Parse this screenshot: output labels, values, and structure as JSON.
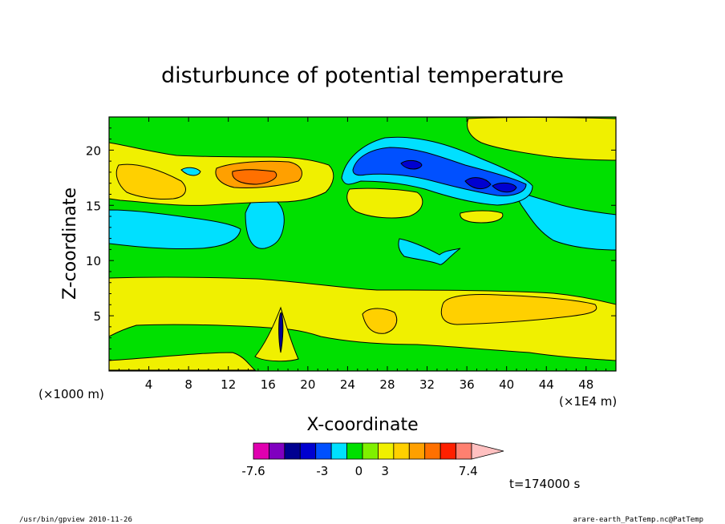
{
  "chart_data": {
    "type": "heatmap",
    "title": "disturbunce of potential temperature",
    "xlabel": "X-coordinate",
    "ylabel": "Z-coordinate",
    "xunit_left": "(×1000 m)",
    "xunit_right": "(×1E4 m)",
    "xlim": [
      0,
      51
    ],
    "ylim": [
      0,
      23
    ],
    "xticks": [
      "4",
      "8",
      "12",
      "16",
      "20",
      "24",
      "28",
      "32",
      "36",
      "40",
      "44",
      "48"
    ],
    "yticks": [
      "5",
      "10",
      "15",
      "20"
    ],
    "colorbar": {
      "colors": [
        "#e000b0",
        "#8000c0",
        "#000090",
        "#0000d0",
        "#0050ff",
        "#00e0ff",
        "#00e000",
        "#80f000",
        "#f0f000",
        "#ffd000",
        "#ffa000",
        "#ff7000",
        "#ff2000",
        "#ff8070",
        "#ffc0c0"
      ],
      "labels": [
        "-7.6",
        "-3",
        "0",
        "3",
        "7.4"
      ]
    },
    "time_label": "t=174000 s",
    "regions": [
      {
        "level": "yellow",
        "name": "lower yellow band",
        "x": [
          0,
          51
        ],
        "z": [
          2,
          8.5
        ]
      },
      {
        "level": "orange",
        "name": "lower right orange cell",
        "x": [
          33,
          49
        ],
        "z": [
          4,
          7
        ]
      },
      {
        "level": "cyan",
        "name": "mid cyan band",
        "x": [
          0,
          51
        ],
        "z": [
          11,
          15.5
        ]
      },
      {
        "level": "yellow",
        "name": "upper yellow band",
        "x": [
          0,
          51
        ],
        "z": [
          15,
          21
        ]
      },
      {
        "level": "dark-orange",
        "name": "upper orange cell",
        "x": [
          11,
          19
        ],
        "z": [
          16.5,
          19
        ]
      },
      {
        "level": "blue",
        "name": "upper blue cell",
        "x": [
          24,
          43
        ],
        "z": [
          16,
          20
        ]
      },
      {
        "level": "dark-blue",
        "name": "upper dark blue cores",
        "x": [
          29,
          40
        ],
        "z": [
          16.5,
          19
        ]
      }
    ]
  },
  "footer": {
    "left": "/usr/bin/gpview   2010-11-26",
    "right": "arare-earth_PatTemp.nc@PatTemp"
  }
}
